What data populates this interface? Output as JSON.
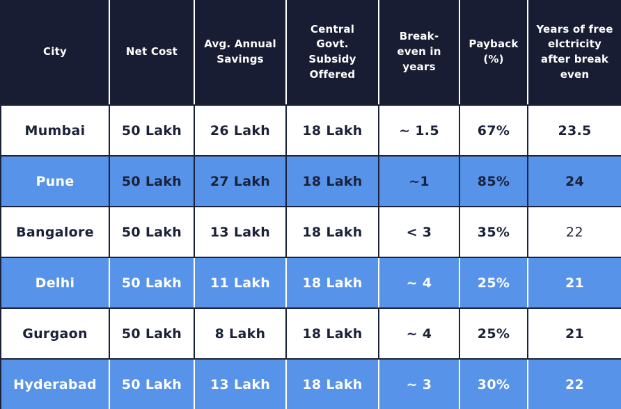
{
  "chart_data": {
    "type": "table",
    "title": "",
    "columns": [
      "City",
      "Net Cost",
      "Avg. Annual Savings",
      "Central Govt. Subsidy Offered",
      "Break-even in years",
      "Payback (%)",
      "Years of free elctricity after break even"
    ],
    "rows": [
      [
        "Mumbai",
        "50 Lakh",
        "26 Lakh",
        "18 Lakh",
        "~ 1.5",
        "67%",
        "23.5"
      ],
      [
        "Pune",
        "50 Lakh",
        "27 Lakh",
        "18 Lakh",
        "~1",
        "85%",
        "24"
      ],
      [
        "Bangalore",
        "50 Lakh",
        "13 Lakh",
        "18 Lakh",
        "< 3",
        "35%",
        "22"
      ],
      [
        "Delhi",
        "50 Lakh",
        "11 Lakh",
        "18 Lakh",
        "~ 4",
        "25%",
        "21"
      ],
      [
        "Gurgaon",
        "50 Lakh",
        "8 Lakh",
        "18 Lakh",
        "~ 4",
        "25%",
        "21"
      ],
      [
        "Hyderabad",
        "50 Lakh",
        "13 Lakh",
        "18 Lakh",
        "~ 3",
        "30%",
        "22"
      ]
    ]
  },
  "table": {
    "header": {
      "columns": [
        "City",
        "Net Cost",
        "Avg. Annual Savings",
        "Central Govt. Subsidy Offered",
        "Break-even in years",
        "Payback (%)",
        "Years of free elctricity after break even"
      ]
    },
    "rows": [
      {
        "city": "Mumbai",
        "values": [
          "50 Lakh",
          "26 Lakh",
          "18 Lakh",
          "~ 1.5",
          "67%",
          "23.5"
        ],
        "variant": "white"
      },
      {
        "city": "Pune",
        "values": [
          "50 Lakh",
          "27 Lakh",
          "18 Lakh",
          "~1",
          "85%",
          "24"
        ],
        "variant": "blue-dark-text"
      },
      {
        "city": "Bangalore",
        "values": [
          "50 Lakh",
          "13 Lakh",
          "18 Lakh",
          "< 3",
          "35%",
          "22"
        ],
        "variant": "white",
        "regular_weight_cols": [
          5
        ]
      },
      {
        "city": "Delhi",
        "values": [
          "50 Lakh",
          "11 Lakh",
          "18 Lakh",
          "~ 4",
          "25%",
          "21"
        ],
        "variant": "blue"
      },
      {
        "city": "Gurgaon",
        "values": [
          "50 Lakh",
          "8 Lakh",
          "18 Lakh",
          "~ 4",
          "25%",
          "21"
        ],
        "variant": "white"
      },
      {
        "city": "Hyderabad",
        "values": [
          "50 Lakh",
          "13 Lakh",
          "18 Lakh",
          "~ 3",
          "30%",
          "22"
        ],
        "variant": "blue"
      }
    ],
    "colors": {
      "header_bg": "#191d33",
      "row_blue": "#5793e8",
      "dark_text": "#1a2138",
      "white_text": "#ffffff"
    }
  }
}
